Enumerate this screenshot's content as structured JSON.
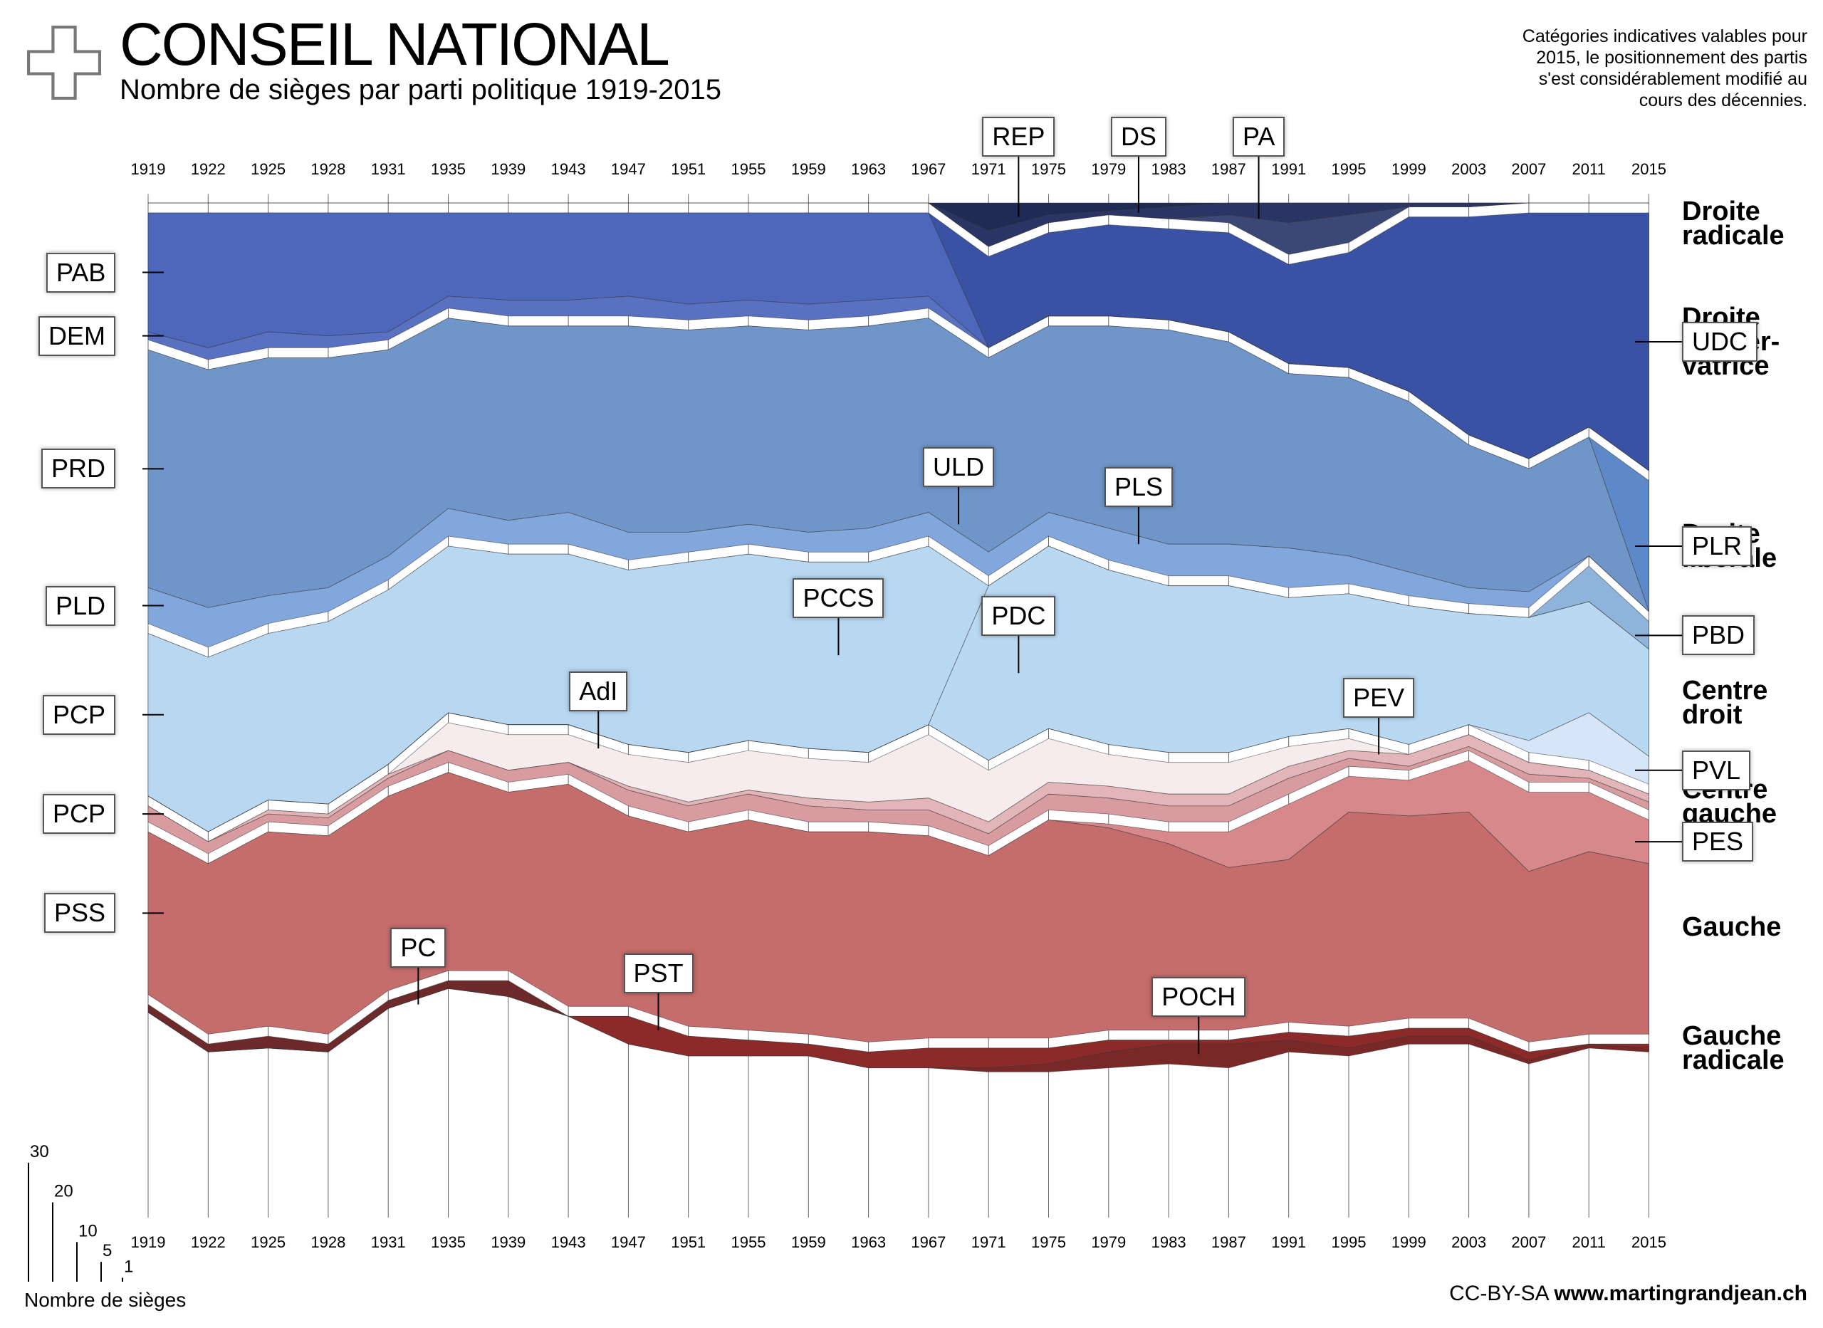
{
  "header": {
    "title": "CONSEIL NATIONAL",
    "subtitle": "Nombre de sièges par parti politique 1919-2015",
    "note": "Catégories indicatives valables pour 2015, le positionnement des partis s'est considérablement modifié au cours des décennies.",
    "credit_license": "CC-BY-SA",
    "credit_site": "www.martingrandjean.ch"
  },
  "colors": {
    "background": "#ffffff",
    "cross": "#ffffff",
    "cross_outline": "#777777",
    "grid": "#333333"
  },
  "scale_legend": {
    "caption": "Nombre de sièges",
    "ticks": [
      {
        "label": "30",
        "value": 30
      },
      {
        "label": "20",
        "value": 20
      },
      {
        "label": "10",
        "value": 10
      },
      {
        "label": "5",
        "value": 5
      },
      {
        "label": "1",
        "value": 1
      }
    ]
  },
  "categories": [
    {
      "label": "Droite radicale",
      "lines": [
        "Droite",
        "radicale"
      ]
    },
    {
      "label": "Droite conservatrice",
      "lines": [
        "Droite",
        "conser-",
        "vatrice"
      ]
    },
    {
      "label": "Droite libérale",
      "lines": [
        "Droite",
        "libérale"
      ]
    },
    {
      "label": "Centre droit",
      "lines": [
        "Centre",
        "droit"
      ]
    },
    {
      "label": "Centre gauche",
      "lines": [
        "Centre",
        "gauche"
      ]
    },
    {
      "label": "Gauche",
      "lines": [
        "Gauche"
      ]
    },
    {
      "label": "Gauche radicale",
      "lines": [
        "Gauche",
        "radicale"
      ]
    }
  ],
  "chart_data": {
    "type": "area",
    "subtype": "stacked-streamgraph",
    "title": "CONSEIL NATIONAL",
    "subtitle": "Nombre de sièges par parti politique 1919-2015",
    "x": [
      "1919",
      "1922",
      "1925",
      "1928",
      "1931",
      "1935",
      "1939",
      "1943",
      "1947",
      "1951",
      "1955",
      "1959",
      "1963",
      "1967",
      "1971",
      "1975",
      "1979",
      "1983",
      "1987",
      "1991",
      "1995",
      "1999",
      "2003",
      "2007",
      "2011",
      "2015"
    ],
    "series": [
      {
        "name": "REP",
        "group": "Droite radicale",
        "color": "#1f2a55",
        "values": [
          0,
          0,
          0,
          0,
          0,
          0,
          0,
          0,
          0,
          0,
          0,
          0,
          0,
          0,
          7,
          3,
          2,
          1,
          0,
          0,
          0,
          0,
          0,
          0,
          0,
          0
        ]
      },
      {
        "name": "DS",
        "group": "Droite radicale",
        "color": "#2a3566",
        "values": [
          0,
          0,
          0,
          0,
          0,
          0,
          0,
          0,
          0,
          0,
          0,
          0,
          0,
          0,
          4,
          2,
          1,
          3,
          3,
          5,
          3,
          1,
          1,
          0,
          0,
          0
        ]
      },
      {
        "name": "PA",
        "group": "Droite radicale",
        "color": "#3b4775",
        "values": [
          0,
          0,
          0,
          0,
          0,
          0,
          0,
          0,
          0,
          0,
          0,
          0,
          0,
          0,
          0,
          0,
          0,
          0,
          2,
          8,
          7,
          0,
          0,
          0,
          0,
          0
        ]
      },
      {
        "name": "UDC",
        "group": "Droite conservatrice",
        "color": "#3a52a4",
        "values": [
          0,
          0,
          0,
          0,
          0,
          0,
          0,
          0,
          0,
          0,
          0,
          0,
          0,
          0,
          23,
          21,
          23,
          23,
          25,
          25,
          29,
          44,
          55,
          62,
          54,
          65
        ]
      },
      {
        "name": "PAB",
        "group": "Droite conservatrice",
        "color": "#4d67bb",
        "values": [
          30,
          34,
          30,
          31,
          30,
          21,
          22,
          22,
          21,
          23,
          22,
          23,
          22,
          21,
          0,
          0,
          0,
          0,
          0,
          0,
          0,
          0,
          0,
          0,
          0,
          0
        ]
      },
      {
        "name": "DEM",
        "group": "Droite conservatrice",
        "color": "#5871c0",
        "values": [
          2,
          3,
          4,
          3,
          2,
          3,
          4,
          4,
          5,
          4,
          4,
          4,
          4,
          3,
          0,
          0,
          0,
          0,
          0,
          0,
          0,
          0,
          0,
          0,
          0,
          0
        ]
      },
      {
        "name": "PLR",
        "group": "Droite libérale",
        "color": "#5e89c8",
        "values": [
          0,
          0,
          0,
          0,
          0,
          0,
          0,
          0,
          0,
          0,
          0,
          0,
          0,
          0,
          0,
          0,
          0,
          0,
          0,
          0,
          0,
          0,
          0,
          0,
          0,
          33
        ]
      },
      {
        "name": "PRD",
        "group": "Droite libérale",
        "color": "#7096c9",
        "values": [
          60,
          60,
          60,
          58,
          52,
          48,
          49,
          47,
          52,
          51,
          50,
          51,
          51,
          49,
          49,
          47,
          51,
          54,
          51,
          44,
          45,
          43,
          36,
          31,
          30,
          0
        ]
      },
      {
        "name": "PLD",
        "group": "Droite libérale",
        "color": "#82a7dd",
        "values": [
          9,
          10,
          7,
          6,
          6,
          7,
          6,
          8,
          7,
          5,
          5,
          5,
          6,
          6,
          6,
          6,
          8,
          8,
          8,
          10,
          7,
          6,
          4,
          4,
          0,
          0
        ]
      },
      {
        "name": "PBD",
        "group": "Centre droit",
        "color": "#8fb4dc",
        "values": [
          0,
          0,
          0,
          0,
          0,
          0,
          0,
          0,
          0,
          0,
          0,
          0,
          0,
          0,
          0,
          0,
          0,
          0,
          0,
          0,
          0,
          0,
          0,
          0,
          9,
          7
        ]
      },
      {
        "name": "PCCS",
        "group": "Centre droit",
        "color": "#b8d7f1",
        "values": [
          41,
          44,
          42,
          46,
          44,
          42,
          43,
          43,
          44,
          48,
          47,
          47,
          48,
          45,
          0,
          0,
          0,
          0,
          0,
          0,
          0,
          0,
          0,
          0,
          0,
          0
        ]
      },
      {
        "name": "PDC",
        "group": "Centre droit",
        "color": "#b9d8f2",
        "values": [
          0,
          0,
          0,
          0,
          0,
          0,
          0,
          0,
          0,
          0,
          0,
          0,
          0,
          0,
          44,
          46,
          44,
          42,
          42,
          35,
          34,
          35,
          28,
          31,
          28,
          27
        ]
      },
      {
        "name": "PVL",
        "group": "Centre droit",
        "color": "#d6e6f8",
        "values": [
          0,
          0,
          0,
          0,
          0,
          0,
          0,
          0,
          0,
          0,
          0,
          0,
          0,
          0,
          0,
          0,
          0,
          0,
          0,
          0,
          0,
          0,
          0,
          3,
          12,
          7
        ]
      },
      {
        "name": "AdI",
        "group": "Centre gauche",
        "color": "#f7eced",
        "values": [
          0,
          0,
          0,
          0,
          0,
          7,
          9,
          7,
          8,
          10,
          10,
          10,
          10,
          16,
          13,
          11,
          8,
          8,
          8,
          5,
          3,
          0,
          0,
          0,
          0,
          0
        ]
      },
      {
        "name": "PEV",
        "group": "Centre gauche",
        "color": "#e2b5b8",
        "values": [
          0,
          0,
          1,
          1,
          1,
          0,
          0,
          0,
          1,
          1,
          1,
          2,
          2,
          3,
          3,
          3,
          3,
          3,
          3,
          3,
          2,
          3,
          3,
          3,
          2,
          2
        ]
      },
      {
        "name": "PCP",
        "group": "Centre gauche",
        "color": "#d89b9f",
        "values": [
          4,
          3,
          2,
          2,
          2,
          3,
          3,
          3,
          4,
          4,
          4,
          4,
          3,
          4,
          3,
          4,
          4,
          4,
          4,
          4,
          2,
          1,
          1,
          2,
          1,
          2
        ]
      },
      {
        "name": "PES",
        "group": "Gauche",
        "color": "#d6888a",
        "values": [
          0,
          0,
          0,
          0,
          0,
          0,
          0,
          0,
          0,
          0,
          0,
          0,
          0,
          0,
          0,
          0,
          1,
          3,
          9,
          14,
          9,
          9,
          13,
          20,
          15,
          11
        ]
      },
      {
        "name": "PSS",
        "group": "Gauche",
        "color": "#c56c6c",
        "values": [
          41,
          43,
          49,
          50,
          49,
          50,
          45,
          56,
          48,
          49,
          53,
          51,
          53,
          51,
          46,
          55,
          51,
          47,
          41,
          41,
          54,
          51,
          52,
          43,
          46,
          43
        ]
      },
      {
        "name": "PC",
        "group": "Gauche radicale",
        "color": "#6e2a2a",
        "values": [
          2,
          2,
          3,
          2,
          2,
          2,
          4,
          0,
          0,
          0,
          0,
          0,
          0,
          0,
          0,
          0,
          0,
          0,
          0,
          0,
          0,
          0,
          0,
          0,
          0,
          0
        ]
      },
      {
        "name": "PST",
        "group": "Gauche radicale",
        "color": "#8c2a2a",
        "values": [
          0,
          0,
          0,
          0,
          0,
          0,
          0,
          0,
          7,
          5,
          4,
          3,
          4,
          5,
          5,
          4,
          3,
          1,
          1,
          2,
          3,
          2,
          2,
          2,
          0,
          1
        ]
      },
      {
        "name": "POCH",
        "group": "Gauche radicale",
        "color": "#7a2727",
        "values": [
          0,
          0,
          0,
          0,
          0,
          0,
          0,
          0,
          0,
          0,
          0,
          0,
          0,
          0,
          1,
          2,
          4,
          5,
          6,
          3,
          2,
          2,
          2,
          1,
          1,
          1
        ]
      }
    ],
    "callouts": [
      {
        "label": "REP",
        "series": "REP",
        "year": "1971"
      },
      {
        "label": "DS",
        "series": "DS",
        "year": "1979"
      },
      {
        "label": "PA",
        "series": "PA",
        "year": "1987"
      },
      {
        "label": "ULD",
        "series": "PLD",
        "year": "1967"
      },
      {
        "label": "PLS",
        "series": "PLD",
        "year": "1979"
      },
      {
        "label": "PCCS",
        "series": "PCCS",
        "year": "1959"
      },
      {
        "label": "PDC",
        "series": "PDC",
        "year": "1971"
      },
      {
        "label": "AdI",
        "series": "AdI",
        "year": "1943"
      },
      {
        "label": "PEV",
        "series": "PEV",
        "year": "1995"
      },
      {
        "label": "PC",
        "series": "PC",
        "year": "1931"
      },
      {
        "label": "PST",
        "series": "PST",
        "year": "1947"
      },
      {
        "label": "POCH",
        "series": "POCH",
        "year": "1983"
      }
    ],
    "labels_left": [
      {
        "label": "PAB",
        "series": "PAB"
      },
      {
        "label": "DEM",
        "series": "DEM"
      },
      {
        "label": "PRD",
        "series": "PRD"
      },
      {
        "label": "PLD",
        "series": "PLD"
      },
      {
        "label": "PCP",
        "series": "PCCS"
      },
      {
        "label": "PCP",
        "series": "PCP"
      },
      {
        "label": "PSS",
        "series": "PSS"
      }
    ],
    "labels_right": [
      {
        "label": "UDC",
        "series": "UDC"
      },
      {
        "label": "PLR",
        "series": "PLR"
      },
      {
        "label": "PBD",
        "series": "PBD"
      },
      {
        "label": "PVL",
        "series": "PVL"
      },
      {
        "label": "PES",
        "series": "PES"
      }
    ],
    "grid": true,
    "year_axis": "top-and-bottom"
  }
}
